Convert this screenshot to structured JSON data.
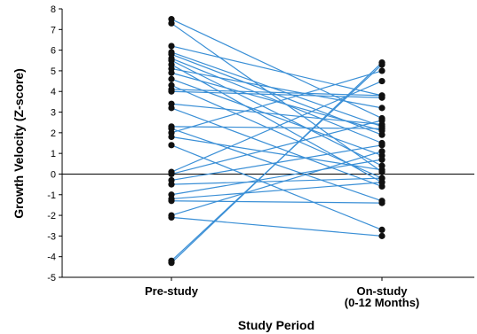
{
  "chart_data": {
    "type": "line",
    "title": "",
    "xlabel": "Study Period",
    "ylabel": "Growth Velocity (Z-score)",
    "categories": [
      {
        "lines": [
          "Pre-study"
        ]
      },
      {
        "lines": [
          "On-study",
          "(0-12 Months)"
        ]
      }
    ],
    "ylim": [
      -5,
      8
    ],
    "yticks": [
      "-5",
      "-4",
      "-3",
      "-2",
      "-1",
      "0",
      "1",
      "2",
      "3",
      "4",
      "5",
      "6",
      "7",
      "8"
    ],
    "reference_line_y": 0,
    "grid": false,
    "line_color": "#3a8fd6",
    "marker_color": "#111111",
    "paired_values": [
      [
        7.5,
        2.7
      ],
      [
        7.3,
        0.1
      ],
      [
        6.2,
        3.8
      ],
      [
        5.9,
        2.3
      ],
      [
        5.8,
        1.9
      ],
      [
        5.6,
        1.5
      ],
      [
        5.5,
        0.4
      ],
      [
        5.3,
        -0.4
      ],
      [
        5.1,
        3.2
      ],
      [
        4.9,
        2.1
      ],
      [
        4.6,
        0.9
      ],
      [
        4.3,
        -0.2
      ],
      [
        4.1,
        3.8
      ],
      [
        4.0,
        3.7
      ],
      [
        3.4,
        2.4
      ],
      [
        3.2,
        -0.6
      ],
      [
        2.3,
        2.2
      ],
      [
        2.2,
        -1.3
      ],
      [
        2.0,
        5.0
      ],
      [
        1.8,
        0.2
      ],
      [
        1.4,
        -2.7
      ],
      [
        0.1,
        4.5
      ],
      [
        0.0,
        2.6
      ],
      [
        -0.3,
        1.4
      ],
      [
        -0.5,
        -0.2
      ],
      [
        -1.0,
        0.7
      ],
      [
        -1.2,
        -0.4
      ],
      [
        -1.3,
        -1.4
      ],
      [
        -2.0,
        1.1
      ],
      [
        -2.1,
        -3.0
      ],
      [
        -4.2,
        5.3
      ],
      [
        -4.3,
        5.4
      ]
    ]
  }
}
